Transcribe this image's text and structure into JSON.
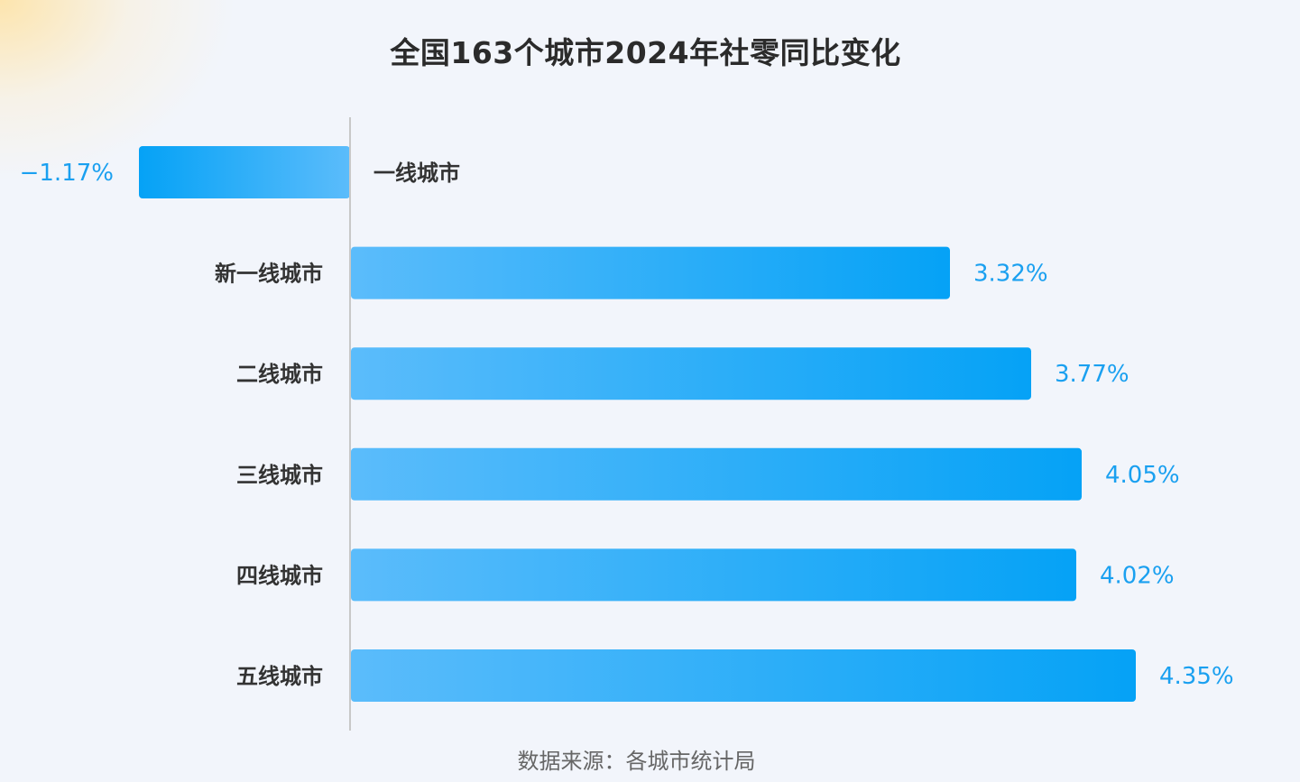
{
  "chart_data": {
    "type": "bar",
    "orientation": "horizontal",
    "title": "全国163个城市2024年社零同比变化",
    "source": "数据来源：各城市统计局",
    "categories": [
      "一线城市",
      "新一线城市",
      "二线城市",
      "三线城市",
      "四线城市",
      "五线城市"
    ],
    "values": [
      -1.17,
      3.32,
      3.77,
      4.05,
      4.02,
      4.35
    ],
    "value_labels": [
      "−1.17%",
      "3.32%",
      "3.77%",
      "4.05%",
      "4.02%",
      "4.35%"
    ],
    "unit": "%",
    "xlim": [
      -1.17,
      4.35
    ],
    "grid": false,
    "legend": "none",
    "colors": {
      "bar_light": "#5bbcfb",
      "bar_dark": "#05a2f6",
      "value_text": "#1aa0f0",
      "axis": "#c8c8c8"
    }
  }
}
